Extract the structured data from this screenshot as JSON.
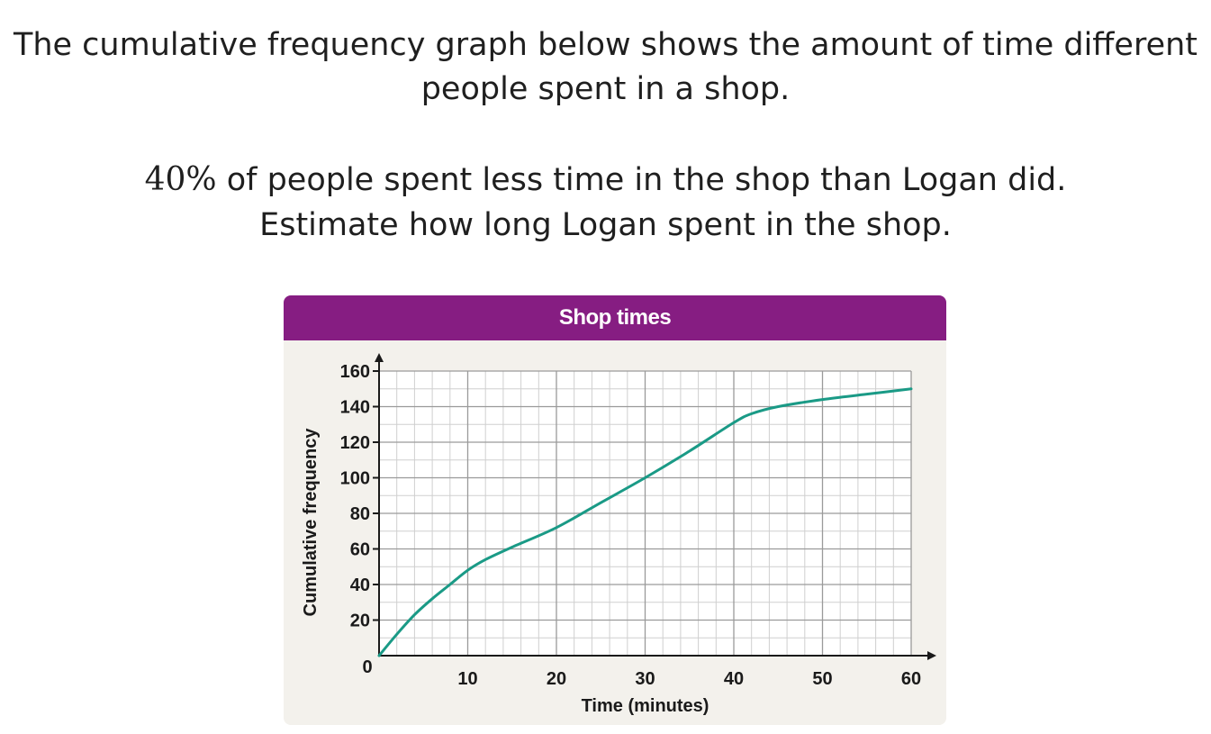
{
  "question": {
    "line1": "The cumulative frequency graph below shows the amount of time different",
    "line2": "people spent in a shop.",
    "line3_math": "40%",
    "line3_rest": " of people spent less time in the shop than Logan did.",
    "line4": "Estimate how long Logan spent in the shop."
  },
  "colors": {
    "header": "#861d82",
    "panel": "#f3f1ec",
    "curve": "#1a9a86",
    "grid_major": "#9a9a9a",
    "grid_minor": "#cfcfcf"
  },
  "chart_data": {
    "type": "line",
    "title": "Shop times",
    "xlabel": "Time (minutes)",
    "ylabel": "Cumulative frequency",
    "xlim": [
      0,
      60
    ],
    "ylim": [
      0,
      160
    ],
    "x_ticks": [
      10,
      20,
      30,
      40,
      50,
      60
    ],
    "y_ticks": [
      20,
      40,
      60,
      80,
      100,
      120,
      140,
      160
    ],
    "origin_label": "0",
    "grid": true,
    "x_minor_step": 2,
    "y_minor_step": 10,
    "series": [
      {
        "x": [
          0,
          2,
          4,
          6,
          8,
          10,
          12,
          15,
          20,
          25,
          30,
          35,
          40,
          42,
          45,
          50,
          55,
          60
        ],
        "y": [
          0,
          12,
          23,
          32,
          40,
          48,
          54,
          61,
          72,
          86,
          100,
          115,
          131,
          136,
          140,
          144,
          147,
          150
        ]
      }
    ]
  }
}
